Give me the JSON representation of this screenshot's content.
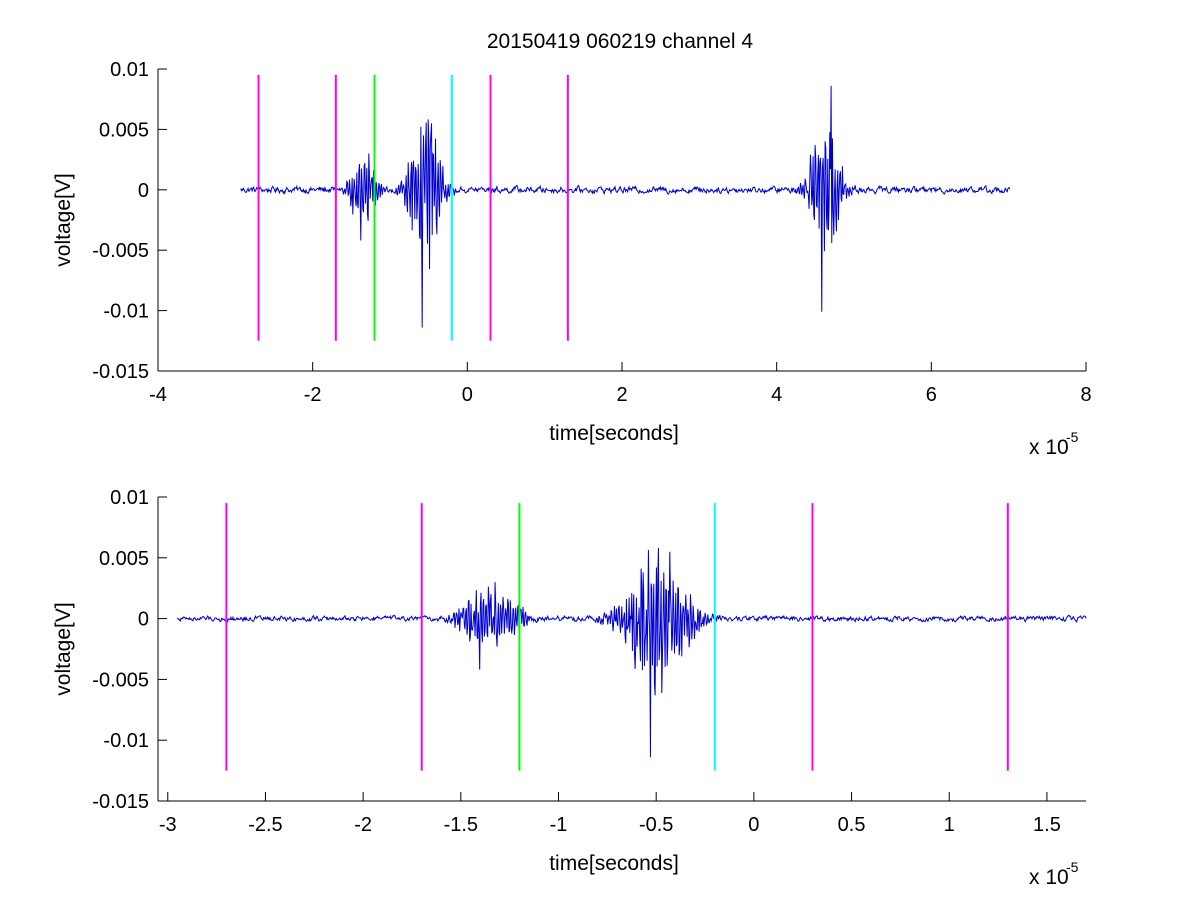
{
  "chart_data": [
    {
      "type": "line",
      "title": "20150419 060219 channel 4",
      "xlabel": "time[seconds]",
      "ylabel": "voltage[V]",
      "x_multiplier": "x 10",
      "x_multiplier_exp": "-5",
      "xlim": [
        -4,
        8
      ],
      "ylim": [
        -0.015,
        0.01
      ],
      "xticks": [
        -4,
        -2,
        0,
        2,
        4,
        6,
        8
      ],
      "xtick_labels": [
        "-4",
        "-2",
        "0",
        "2",
        "4",
        "6",
        "8"
      ],
      "yticks": [
        -0.015,
        -0.01,
        -0.005,
        0,
        0.005,
        0.01
      ],
      "ytick_labels": [
        "-0.015",
        "-0.01",
        "-0.005",
        "0",
        "0.005",
        "0.01"
      ],
      "grid": false,
      "signal": {
        "color": "#0000cc",
        "x_start": -2.93,
        "x_end": 7.02,
        "noise_level": 0.0005,
        "bursts": [
          {
            "center": -1.35,
            "width": 0.3,
            "amplitude": 0.0035,
            "min": -0.0042,
            "max": 0.003
          },
          {
            "center": -1.22,
            "width": 0.12,
            "amplitude": 0.0012
          },
          {
            "center": -0.55,
            "width": 0.35,
            "amplitude": 0.008,
            "min": -0.0114,
            "max": 0.0055
          },
          {
            "center": 4.62,
            "width": 0.35,
            "amplitude": 0.007,
            "min": -0.0101,
            "max": 0.0086
          }
        ]
      },
      "vlines": [
        {
          "x": -2.7,
          "color": "#ff00ff"
        },
        {
          "x": -1.7,
          "color": "#ff00ff"
        },
        {
          "x": -1.2,
          "color": "#00ff00"
        },
        {
          "x": -0.2,
          "color": "#00ffff"
        },
        {
          "x": 0.3,
          "color": "#ff00ff"
        },
        {
          "x": 1.3,
          "color": "#ff00ff"
        }
      ],
      "vline_range": [
        -0.0125,
        0.0095
      ]
    },
    {
      "type": "line",
      "title": "",
      "xlabel": "time[seconds]",
      "ylabel": "voltage[V]",
      "x_multiplier": "x 10",
      "x_multiplier_exp": "-5",
      "xlim": [
        -3.05,
        1.7
      ],
      "ylim": [
        -0.015,
        0.01
      ],
      "xticks": [
        -3,
        -2.5,
        -2,
        -1.5,
        -1,
        -0.5,
        0,
        0.5,
        1,
        1.5
      ],
      "xtick_labels": [
        "-3",
        "-2.5",
        "-2",
        "-1.5",
        "-1",
        "-0.5",
        "0",
        "0.5",
        "1",
        "1.5"
      ],
      "yticks": [
        -0.015,
        -0.01,
        -0.005,
        0,
        0.005,
        0.01
      ],
      "ytick_labels": [
        "-0.015",
        "-0.01",
        "-0.005",
        "0",
        "0.005",
        "0.01"
      ],
      "grid": false,
      "signal": {
        "color": "#0000cc",
        "x_start": -2.95,
        "x_end": 1.7,
        "noise_level": 0.0004,
        "bursts": [
          {
            "center": -1.38,
            "width": 0.22,
            "amplitude": 0.003,
            "min": -0.0042,
            "max": 0.003
          },
          {
            "center": -1.22,
            "width": 0.1,
            "amplitude": 0.0013
          },
          {
            "center": -0.5,
            "width": 0.28,
            "amplitude": 0.0075,
            "min": -0.0114,
            "max": 0.0055
          }
        ]
      },
      "vlines": [
        {
          "x": -2.7,
          "color": "#ff00ff"
        },
        {
          "x": -1.7,
          "color": "#ff00ff"
        },
        {
          "x": -1.2,
          "color": "#00ff00"
        },
        {
          "x": -0.2,
          "color": "#00ffff"
        },
        {
          "x": 0.3,
          "color": "#ff00ff"
        },
        {
          "x": 1.3,
          "color": "#ff00ff"
        }
      ],
      "vline_range": [
        -0.0125,
        0.0095
      ]
    }
  ]
}
